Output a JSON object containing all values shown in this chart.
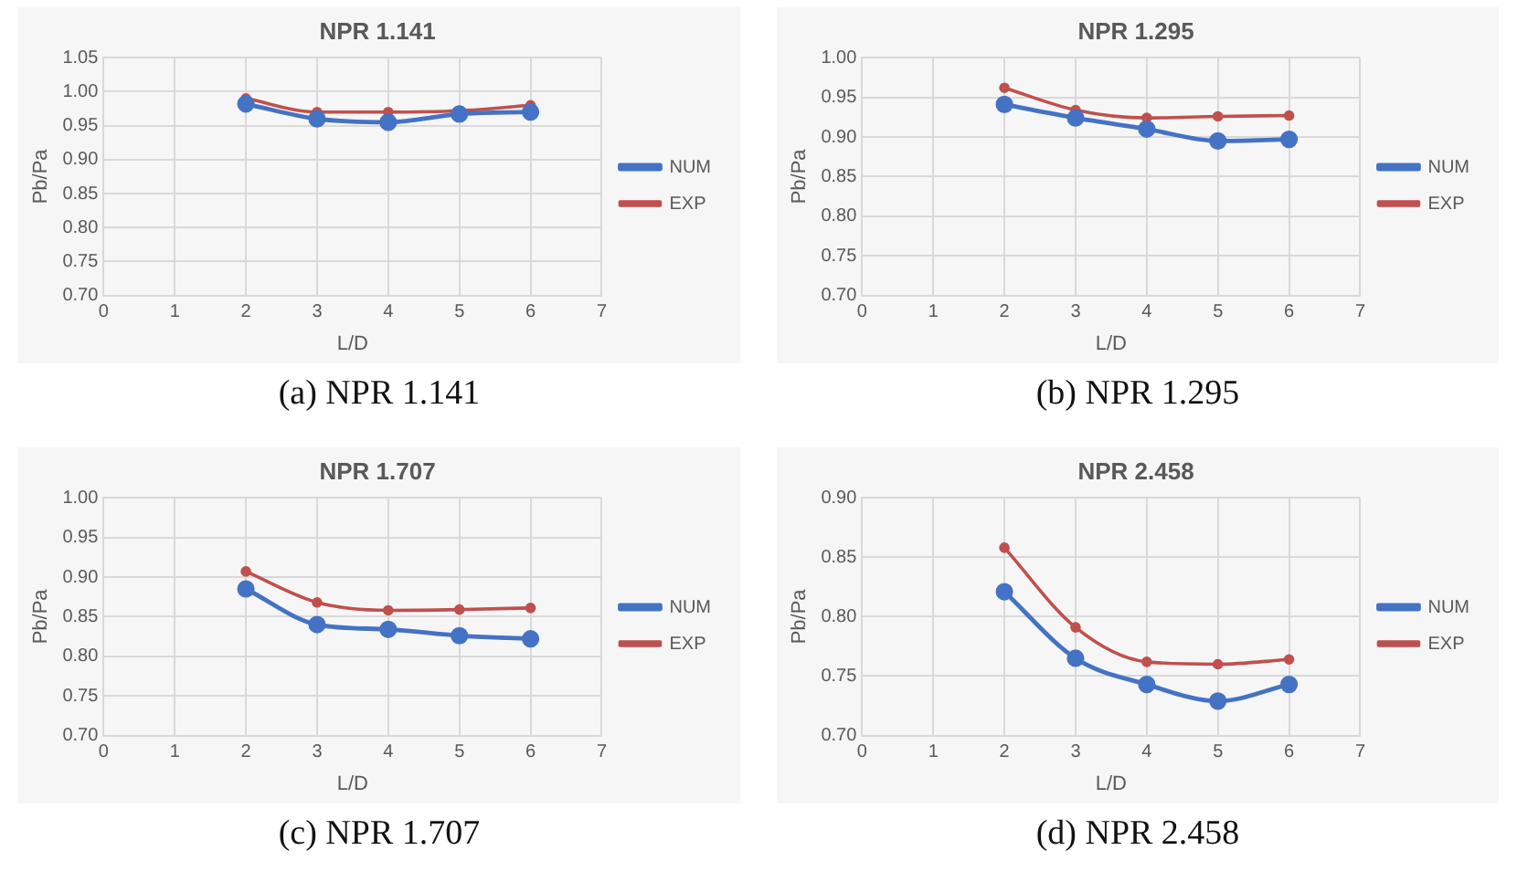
{
  "chart_data": [
    {
      "type": "line",
      "title": "NPR 1.141",
      "xlabel": "L/D",
      "ylabel": "Pb/Pa",
      "annotations": [
        "(a) NPR 1.141"
      ],
      "x": [
        2,
        3,
        4,
        5,
        6
      ],
      "xlim": [
        0,
        7
      ],
      "xticks": [
        0,
        1,
        2,
        3,
        4,
        5,
        6,
        7
      ],
      "ylim": [
        0.7,
        1.05
      ],
      "yticks": [
        {
          "value": 0.7,
          "label": "0.70"
        },
        {
          "value": 0.75,
          "label": "0.75"
        },
        {
          "value": 0.8,
          "label": "0.80"
        },
        {
          "value": 0.85,
          "label": "0.85"
        },
        {
          "value": 0.9,
          "label": "0.90"
        },
        {
          "value": 0.95,
          "label": "0.95"
        },
        {
          "value": 1.0,
          "label": "1.00"
        },
        {
          "value": 1.05,
          "label": "1.05"
        }
      ],
      "grid": true,
      "legend": "right",
      "marker": "circle",
      "line_style": "solid",
      "series": [
        {
          "name": "NUM",
          "color": "#4472c4",
          "values": [
            0.982,
            0.96,
            0.955,
            0.967,
            0.97
          ]
        },
        {
          "name": "EXP",
          "color": "#c0504d",
          "values": [
            0.99,
            0.97,
            0.97,
            0.972,
            0.98
          ]
        }
      ]
    },
    {
      "type": "line",
      "title": "NPR 1.295",
      "xlabel": "L/D",
      "ylabel": "Pb/Pa",
      "annotations": [
        "(b) NPR 1.295"
      ],
      "x": [
        2,
        3,
        4,
        5,
        6
      ],
      "xlim": [
        0,
        7
      ],
      "xticks": [
        0,
        1,
        2,
        3,
        4,
        5,
        6,
        7
      ],
      "ylim": [
        0.7,
        1.0
      ],
      "yticks": [
        {
          "value": 0.7,
          "label": "0.70"
        },
        {
          "value": 0.75,
          "label": "0.75"
        },
        {
          "value": 0.8,
          "label": "0.80"
        },
        {
          "value": 0.85,
          "label": "0.85"
        },
        {
          "value": 0.9,
          "label": "0.90"
        },
        {
          "value": 0.95,
          "label": "0.95"
        },
        {
          "value": 1.0,
          "label": "1.00"
        }
      ],
      "grid": true,
      "legend": "right",
      "marker": "circle",
      "line_style": "solid",
      "series": [
        {
          "name": "NUM",
          "color": "#4472c4",
          "values": [
            0.941,
            0.924,
            0.91,
            0.895,
            0.897
          ]
        },
        {
          "name": "EXP",
          "color": "#c0504d",
          "values": [
            0.962,
            0.934,
            0.924,
            0.926,
            0.927
          ]
        }
      ]
    },
    {
      "type": "line",
      "title": "NPR 1.707",
      "xlabel": "L/D",
      "ylabel": "Pb/Pa",
      "annotations": [
        "(c) NPR 1.707"
      ],
      "x": [
        2,
        3,
        4,
        5,
        6
      ],
      "xlim": [
        0,
        7
      ],
      "xticks": [
        0,
        1,
        2,
        3,
        4,
        5,
        6,
        7
      ],
      "ylim": [
        0.7,
        1.0
      ],
      "yticks": [
        {
          "value": 0.7,
          "label": "0.70"
        },
        {
          "value": 0.75,
          "label": "0.75"
        },
        {
          "value": 0.8,
          "label": "0.80"
        },
        {
          "value": 0.85,
          "label": "0.85"
        },
        {
          "value": 0.9,
          "label": "0.90"
        },
        {
          "value": 0.95,
          "label": "0.95"
        },
        {
          "value": 1.0,
          "label": "1.00"
        }
      ],
      "grid": true,
      "legend": "right",
      "marker": "circle",
      "line_style": "solid",
      "series": [
        {
          "name": "NUM",
          "color": "#4472c4",
          "values": [
            0.885,
            0.84,
            0.834,
            0.826,
            0.822
          ]
        },
        {
          "name": "EXP",
          "color": "#c0504d",
          "values": [
            0.907,
            0.868,
            0.858,
            0.859,
            0.861
          ]
        }
      ]
    },
    {
      "type": "line",
      "title": "NPR 2.458",
      "xlabel": "L/D",
      "ylabel": "Pb/Pa",
      "annotations": [
        "(d) NPR 2.458"
      ],
      "x": [
        2,
        3,
        4,
        5,
        6
      ],
      "xlim": [
        0,
        7
      ],
      "xticks": [
        0,
        1,
        2,
        3,
        4,
        5,
        6,
        7
      ],
      "ylim": [
        0.7,
        0.9
      ],
      "yticks": [
        {
          "value": 0.7,
          "label": "0.70"
        },
        {
          "value": 0.75,
          "label": "0.75"
        },
        {
          "value": 0.8,
          "label": "0.80"
        },
        {
          "value": 0.85,
          "label": "0.85"
        },
        {
          "value": 0.9,
          "label": "0.90"
        }
      ],
      "grid": true,
      "legend": "right",
      "marker": "circle",
      "line_style": "solid",
      "series": [
        {
          "name": "NUM",
          "color": "#4472c4",
          "values": [
            0.821,
            0.765,
            0.743,
            0.729,
            0.743
          ]
        },
        {
          "name": "EXP",
          "color": "#c0504d",
          "values": [
            0.858,
            0.791,
            0.762,
            0.76,
            0.764
          ]
        }
      ]
    }
  ]
}
